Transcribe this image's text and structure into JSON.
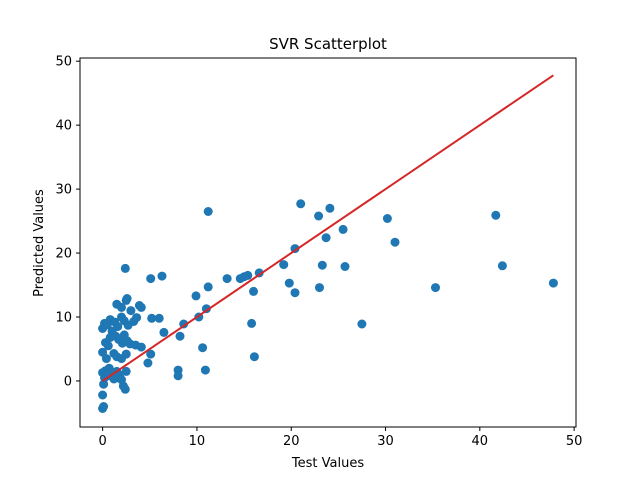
{
  "chart_data": {
    "type": "scatter",
    "title": "SVR Scatterplot",
    "xlabel": "Test Values",
    "ylabel": "Predicted Values",
    "xlim": [
      -2.4,
      50.2
    ],
    "ylim": [
      -7.2,
      50.5
    ],
    "xticks": [
      0,
      10,
      20,
      30,
      40,
      50
    ],
    "yticks": [
      0,
      10,
      20,
      30,
      40,
      50
    ],
    "grid": false,
    "colors": {
      "points": "#1f77b4",
      "line": "#d62728",
      "axes": "#000000"
    },
    "series": [
      {
        "points": [
          [
            0.0,
            -4.3
          ],
          [
            0.1,
            -4.0
          ],
          [
            0.0,
            -2.2
          ],
          [
            0.1,
            -0.5
          ],
          [
            0.2,
            0.5
          ],
          [
            0.0,
            1.3
          ],
          [
            0.3,
            1.6
          ],
          [
            0.5,
            0.8
          ],
          [
            0.7,
            2.0
          ],
          [
            1.0,
            1.2
          ],
          [
            1.2,
            0.3
          ],
          [
            1.5,
            1.5
          ],
          [
            1.8,
            1.0
          ],
          [
            2.0,
            0.2
          ],
          [
            2.2,
            -0.8
          ],
          [
            2.4,
            -1.3
          ],
          [
            2.5,
            1.5
          ],
          [
            0.4,
            3.5
          ],
          [
            0.0,
            4.5
          ],
          [
            1.2,
            4.3
          ],
          [
            1.5,
            3.8
          ],
          [
            2.0,
            3.5
          ],
          [
            2.5,
            4.2
          ],
          [
            0.3,
            6.0
          ],
          [
            0.6,
            5.5
          ],
          [
            0.8,
            6.8
          ],
          [
            1.0,
            7.8
          ],
          [
            1.4,
            7.0
          ],
          [
            1.7,
            6.5
          ],
          [
            2.1,
            5.9
          ],
          [
            2.3,
            7.2
          ],
          [
            2.6,
            6.3
          ],
          [
            2.9,
            5.8
          ],
          [
            3.5,
            5.6
          ],
          [
            4.1,
            5.3
          ],
          [
            0.0,
            8.2
          ],
          [
            0.2,
            9.0
          ],
          [
            0.5,
            8.8
          ],
          [
            0.8,
            9.6
          ],
          [
            1.3,
            9.2
          ],
          [
            1.6,
            8.5
          ],
          [
            2.0,
            10.0
          ],
          [
            2.3,
            9.4
          ],
          [
            2.7,
            8.7
          ],
          [
            1.5,
            12.0
          ],
          [
            2.0,
            11.5
          ],
          [
            2.5,
            12.6
          ],
          [
            2.6,
            12.9
          ],
          [
            3.0,
            11.0
          ],
          [
            3.3,
            9.3
          ],
          [
            3.6,
            9.9
          ],
          [
            3.9,
            11.8
          ],
          [
            4.1,
            11.5
          ],
          [
            2.4,
            17.6
          ],
          [
            5.1,
            16.0
          ],
          [
            6.3,
            16.4
          ],
          [
            4.8,
            2.8
          ],
          [
            5.1,
            4.2
          ],
          [
            5.2,
            9.8
          ],
          [
            6.0,
            9.8
          ],
          [
            6.5,
            7.6
          ],
          [
            8.0,
            1.7
          ],
          [
            8.0,
            0.8
          ],
          [
            8.2,
            7.0
          ],
          [
            8.6,
            8.9
          ],
          [
            9.9,
            13.3
          ],
          [
            10.2,
            10.0
          ],
          [
            10.6,
            5.2
          ],
          [
            10.9,
            1.7
          ],
          [
            11.0,
            11.3
          ],
          [
            11.2,
            14.7
          ],
          [
            11.2,
            26.5
          ],
          [
            13.2,
            16.0
          ],
          [
            14.6,
            16.0
          ],
          [
            15.0,
            16.3
          ],
          [
            15.4,
            16.5
          ],
          [
            15.8,
            9.0
          ],
          [
            16.0,
            14.0
          ],
          [
            16.1,
            3.8
          ],
          [
            16.6,
            16.9
          ],
          [
            19.2,
            18.2
          ],
          [
            19.8,
            15.3
          ],
          [
            20.4,
            13.8
          ],
          [
            20.4,
            20.7
          ],
          [
            21.0,
            27.7
          ],
          [
            22.9,
            25.8
          ],
          [
            23.0,
            14.6
          ],
          [
            23.3,
            18.1
          ],
          [
            23.7,
            22.4
          ],
          [
            24.1,
            27.0
          ],
          [
            25.5,
            23.7
          ],
          [
            25.7,
            17.9
          ],
          [
            27.5,
            8.9
          ],
          [
            30.2,
            25.4
          ],
          [
            31.0,
            21.7
          ],
          [
            35.3,
            14.6
          ],
          [
            41.7,
            25.9
          ],
          [
            42.4,
            18.0
          ],
          [
            47.8,
            15.3
          ]
        ]
      }
    ],
    "line": {
      "x": [
        0,
        47.8
      ],
      "y": [
        0,
        47.8
      ]
    }
  }
}
